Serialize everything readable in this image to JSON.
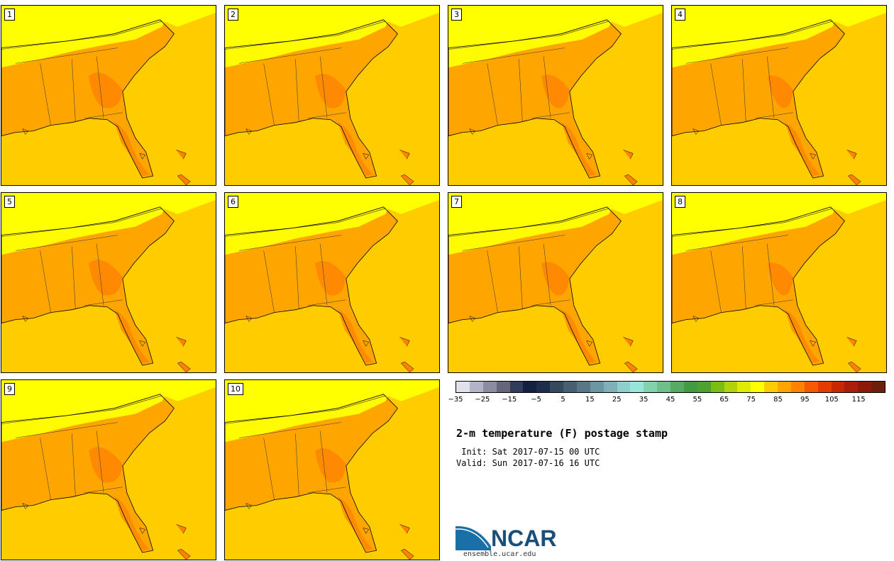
{
  "panels": [
    {
      "label": "1"
    },
    {
      "label": "2"
    },
    {
      "label": "3"
    },
    {
      "label": "4"
    },
    {
      "label": "5"
    },
    {
      "label": "6"
    },
    {
      "label": "7"
    },
    {
      "label": "8"
    },
    {
      "label": "9"
    },
    {
      "label": "10"
    }
  ],
  "colorbar": {
    "colors": [
      "#e1e1eb",
      "#b4b4c8",
      "#8c8ca0",
      "#66667a",
      "#323c5a",
      "#142041",
      "#1e2d4b",
      "#34485e",
      "#475f73",
      "#58788a",
      "#6a96a2",
      "#7fb0b8",
      "#8ccfcc",
      "#96e6d9",
      "#82d2ac",
      "#6ebf8c",
      "#55aa64",
      "#419b41",
      "#4ea32e",
      "#7bbd14",
      "#afd20a",
      "#dceb00",
      "#ffff00",
      "#ffcc00",
      "#ffa500",
      "#ff8200",
      "#f55a00",
      "#e43c00",
      "#c82800",
      "#aa1e0a",
      "#8c1a0a",
      "#6e1e0a"
    ],
    "tick_labels": [
      "−35",
      "−25",
      "−15",
      "−5",
      "5",
      "15",
      "25",
      "35",
      "45",
      "55",
      "65",
      "75",
      "85",
      "95",
      "105",
      "115"
    ]
  },
  "title": "2-m temperature (F) postage stamp",
  "init": " Init: Sat 2017-07-15 00 UTC",
  "valid": "Valid: Sun 2017-07-16 16 UTC",
  "logo": {
    "text": "NCAR",
    "url": "ensemble.ucar.edu"
  },
  "map_colors": {
    "ocean": "#ffcc00",
    "cool_land": "#ffff00",
    "warm_land": "#ffa500",
    "hot_land": "#ff8200",
    "border": "#333333"
  }
}
